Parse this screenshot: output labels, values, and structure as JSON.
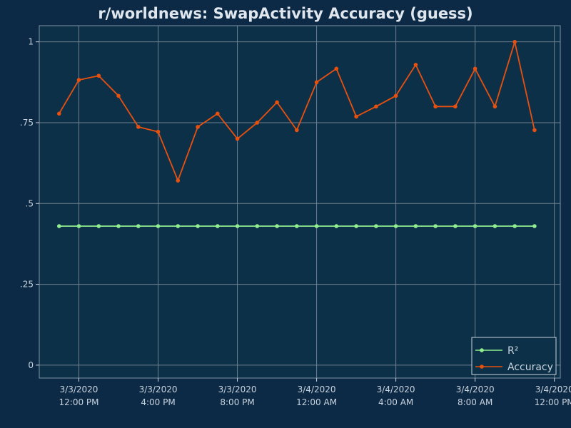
{
  "chart_data": {
    "type": "line",
    "title": "r/worldnews: SwapActivity Accuracy (guess)",
    "xlabel": "",
    "ylabel": "",
    "x": [
      "3/3/2020 11:00",
      "3/3/2020 12:00",
      "3/3/2020 13:00",
      "3/3/2020 14:00",
      "3/3/2020 15:00",
      "3/3/2020 16:00",
      "3/3/2020 17:00",
      "3/3/2020 18:00",
      "3/3/2020 19:00",
      "3/3/2020 20:00",
      "3/3/2020 21:00",
      "3/3/2020 22:00",
      "3/3/2020 23:00",
      "3/4/2020 00:00",
      "3/4/2020 01:00",
      "3/4/2020 02:00",
      "3/4/2020 03:00",
      "3/4/2020 04:00",
      "3/4/2020 05:00",
      "3/4/2020 06:00",
      "3/4/2020 07:00",
      "3/4/2020 08:00",
      "3/4/2020 09:00",
      "3/4/2020 10:00",
      "3/4/2020 11:00"
    ],
    "x_ticks": [
      {
        "line1": "3/3/2020",
        "line2": "12:00 PM"
      },
      {
        "line1": "3/3/2020",
        "line2": "4:00 PM"
      },
      {
        "line1": "3/3/2020",
        "line2": "8:00 PM"
      },
      {
        "line1": "3/4/2020",
        "line2": "12:00 AM"
      },
      {
        "line1": "3/4/2020",
        "line2": "4:00 AM"
      },
      {
        "line1": "3/4/2020",
        "line2": "8:00 AM"
      },
      {
        "line1": "3/4/2020",
        "line2": "12:00 PM"
      }
    ],
    "x_tick_hours": [
      1,
      5,
      9,
      13,
      17,
      21,
      25
    ],
    "y_ticks": [
      {
        "value": 0,
        "label": "0"
      },
      {
        "value": 0.25,
        "label": ".25"
      },
      {
        "value": 0.5,
        "label": ".5"
      },
      {
        "value": 0.75,
        "label": ".75"
      },
      {
        "value": 1,
        "label": "1"
      }
    ],
    "ylim": [
      -0.04,
      1.05
    ],
    "xlim_hours": [
      -1.0,
      25.3
    ],
    "grid": true,
    "legend_position": "bottom-right",
    "series": [
      {
        "name": "R²",
        "color": "#90ee90",
        "values": [
          0.43,
          0.43,
          0.43,
          0.43,
          0.43,
          0.43,
          0.43,
          0.43,
          0.43,
          0.43,
          0.43,
          0.43,
          0.43,
          0.43,
          0.43,
          0.43,
          0.43,
          0.43,
          0.43,
          0.43,
          0.43,
          0.43,
          0.43,
          0.43,
          0.43
        ]
      },
      {
        "name": "Accuracy",
        "color": "#e8500e",
        "values": [
          0.778,
          0.882,
          0.895,
          0.833,
          0.737,
          0.722,
          0.571,
          0.737,
          0.778,
          0.7,
          0.75,
          0.813,
          0.727,
          0.875,
          0.917,
          0.769,
          0.8,
          0.833,
          0.929,
          0.8,
          0.8,
          0.917,
          0.8,
          1.0,
          0.727
        ]
      }
    ]
  },
  "colors": {
    "background": "#0c2a45",
    "plot_background": "#0d3049",
    "grid": "#6f7f8e",
    "text": "#c9d3de"
  }
}
